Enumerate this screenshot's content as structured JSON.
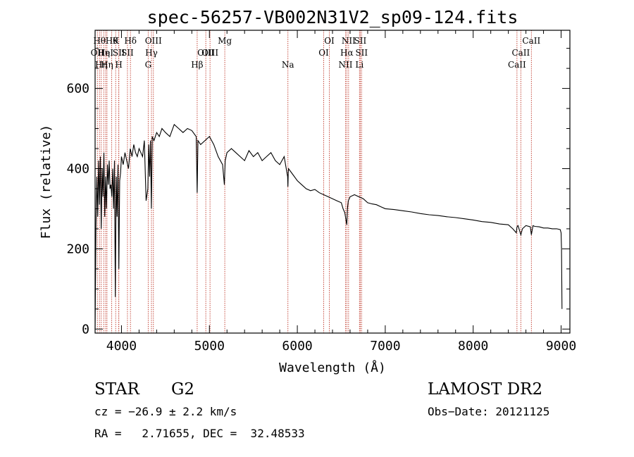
{
  "chart_data": {
    "type": "line",
    "title": "spec-56257-VB002N31V2_sp09-124.fits",
    "xlabel": "Wavelength (Å)",
    "ylabel": "Flux (relative)",
    "xlim": [
      3700,
      9100
    ],
    "ylim": [
      -10,
      745
    ],
    "xticks": [
      4000,
      5000,
      6000,
      7000,
      8000,
      9000
    ],
    "yticks": [
      0,
      200,
      400,
      600
    ],
    "series": [
      {
        "name": "flux",
        "x": [
          3700,
          3710,
          3720,
          3730,
          3740,
          3750,
          3760,
          3770,
          3780,
          3790,
          3800,
          3810,
          3820,
          3830,
          3840,
          3850,
          3860,
          3870,
          3880,
          3890,
          3900,
          3910,
          3920,
          3930,
          3940,
          3950,
          3960,
          3970,
          3980,
          3990,
          4000,
          4020,
          4040,
          4060,
          4080,
          4100,
          4120,
          4140,
          4160,
          4180,
          4200,
          4220,
          4240,
          4260,
          4280,
          4300,
          4310,
          4320,
          4330,
          4340,
          4350,
          4370,
          4400,
          4430,
          4460,
          4500,
          4550,
          4600,
          4650,
          4700,
          4750,
          4800,
          4850,
          4861,
          4870,
          4900,
          4950,
          5000,
          5050,
          5100,
          5150,
          5170,
          5175,
          5180,
          5200,
          5250,
          5300,
          5350,
          5400,
          5450,
          5500,
          5550,
          5600,
          5650,
          5700,
          5750,
          5800,
          5850,
          5890,
          5893,
          5897,
          5900,
          5950,
          6000,
          6050,
          6100,
          6150,
          6200,
          6250,
          6300,
          6350,
          6400,
          6450,
          6500,
          6520,
          6540,
          6555,
          6563,
          6570,
          6580,
          6600,
          6650,
          6700,
          6750,
          6800,
          6850,
          6900,
          6950,
          7000,
          7100,
          7200,
          7300,
          7400,
          7500,
          7600,
          7700,
          7800,
          7900,
          8000,
          8100,
          8200,
          8300,
          8400,
          8450,
          8490,
          8498,
          8510,
          8542,
          8560,
          8600,
          8650,
          8662,
          8680,
          8700,
          8750,
          8800,
          8850,
          8900,
          8950,
          8990,
          9000,
          9005,
          9010
        ],
        "values": [
          0,
          260,
          380,
          280,
          420,
          310,
          430,
          250,
          400,
          330,
          440,
          280,
          380,
          300,
          410,
          360,
          420,
          350,
          360,
          330,
          400,
          300,
          420,
          80,
          380,
          280,
          410,
          150,
          370,
          390,
          430,
          410,
          440,
          420,
          400,
          450,
          430,
          460,
          440,
          430,
          450,
          440,
          430,
          470,
          320,
          350,
          460,
          380,
          470,
          300,
          480,
          470,
          490,
          480,
          500,
          490,
          480,
          510,
          500,
          490,
          500,
          495,
          480,
          340,
          470,
          460,
          470,
          480,
          460,
          430,
          410,
          360,
          390,
          420,
          440,
          450,
          440,
          430,
          420,
          445,
          430,
          440,
          420,
          430,
          440,
          420,
          410,
          430,
          380,
          355,
          390,
          400,
          385,
          370,
          360,
          350,
          345,
          348,
          340,
          335,
          330,
          325,
          320,
          315,
          300,
          290,
          270,
          260,
          300,
          320,
          330,
          335,
          330,
          325,
          315,
          312,
          310,
          305,
          300,
          298,
          295,
          292,
          288,
          285,
          283,
          280,
          278,
          275,
          272,
          268,
          266,
          262,
          260,
          250,
          240,
          255,
          258,
          235,
          250,
          258,
          255,
          235,
          258,
          256,
          255,
          252,
          252,
          250,
          250,
          248,
          240,
          200,
          50
        ]
      }
    ],
    "lines": [
      {
        "x": 3726,
        "label": "OII",
        "row": 1
      },
      {
        "x": 3750,
        "label": "Hθ",
        "row": 0
      },
      {
        "x": 3770,
        "label": "Hη",
        "row": 2
      },
      {
        "x": 3798,
        "label": "Hη",
        "row": 1
      },
      {
        "x": 3820,
        "label": "HeI",
        "row": 1
      },
      {
        "x": 3835,
        "label": "Hη",
        "row": 2
      },
      {
        "x": 3889,
        "label": "Hθ",
        "row": 0
      },
      {
        "x": 3934,
        "label": "K",
        "row": 0
      },
      {
        "x": 3969,
        "label": "H",
        "row": 2
      },
      {
        "x": 3970,
        "label": "SII",
        "row": 1
      },
      {
        "x": 4102,
        "label": "Hδ",
        "row": 0
      },
      {
        "x": 4068,
        "label": "SII",
        "row": 1
      },
      {
        "x": 4304,
        "label": "G",
        "row": 2
      },
      {
        "x": 4341,
        "label": "Hγ",
        "row": 1
      },
      {
        "x": 4363,
        "label": "OIII",
        "row": 0
      },
      {
        "x": 4861,
        "label": "Hβ",
        "row": 2
      },
      {
        "x": 4959,
        "label": "OIII",
        "row": 1
      },
      {
        "x": 5007,
        "label": "OIII",
        "row": 1
      },
      {
        "x": 5175,
        "label": "Mg",
        "row": 0
      },
      {
        "x": 5893,
        "label": "Na",
        "row": 2
      },
      {
        "x": 6300,
        "label": "OI",
        "row": 1
      },
      {
        "x": 6364,
        "label": "OI",
        "row": 0
      },
      {
        "x": 6548,
        "label": "NII",
        "row": 2
      },
      {
        "x": 6563,
        "label": "Hα",
        "row": 1
      },
      {
        "x": 6583,
        "label": "NII",
        "row": 0
      },
      {
        "x": 6707,
        "label": "Li",
        "row": 2
      },
      {
        "x": 6716,
        "label": "SII",
        "row": 0
      },
      {
        "x": 6731,
        "label": "SII",
        "row": 1
      },
      {
        "x": 8498,
        "label": "CaII",
        "row": 2
      },
      {
        "x": 8542,
        "label": "CaII",
        "row": 1
      },
      {
        "x": 8662,
        "label": "CaII",
        "row": 0
      }
    ]
  },
  "footer": {
    "class_label": "STAR",
    "subclass": "G2",
    "survey": "LAMOST DR2",
    "cz": "cz = −26.9 ± 2.2 km/s",
    "obs_date": "Obs−Date: 20121125",
    "coords": "RA =   2.71655, DEC =  32.48533"
  },
  "colors": {
    "spectrum": "#000000",
    "lines": "#c0392b",
    "axes": "#000000"
  }
}
